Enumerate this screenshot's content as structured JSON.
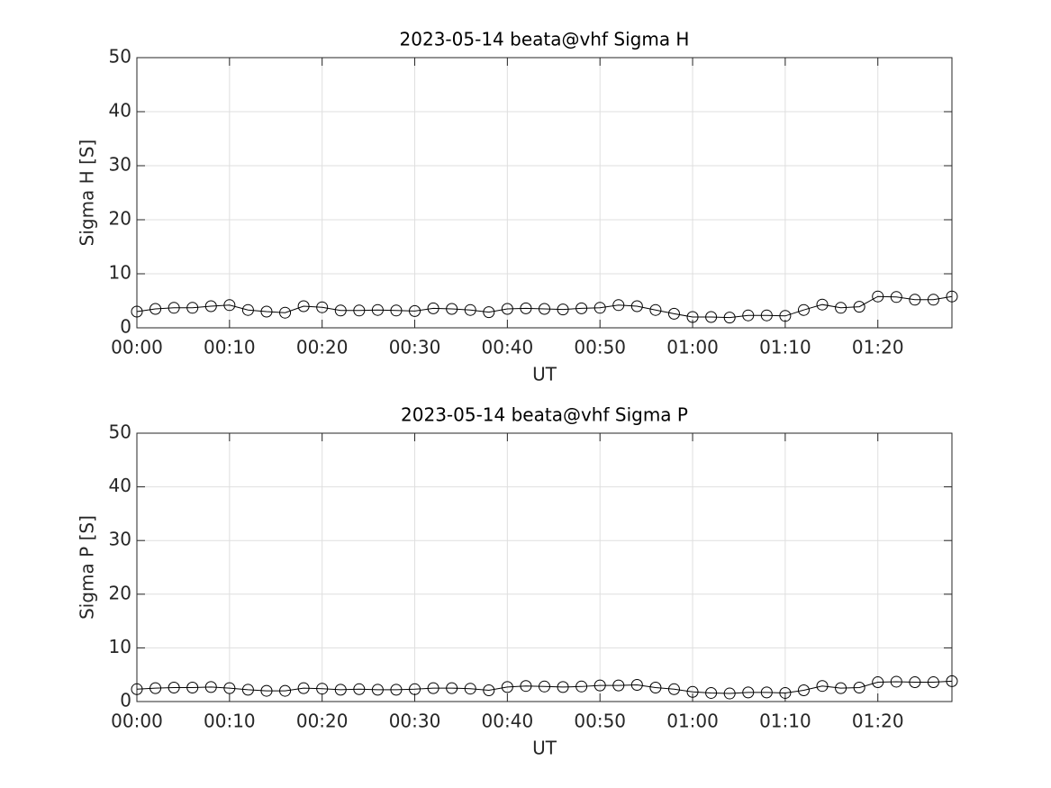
{
  "chart_data": [
    {
      "type": "line",
      "title": "2023-05-14  beata@vhf Sigma H",
      "xlabel": "UT",
      "ylabel": "Sigma H [S]",
      "x": [
        "00:00",
        "00:02",
        "00:04",
        "00:06",
        "00:08",
        "00:10",
        "00:12",
        "00:14",
        "00:16",
        "00:18",
        "00:20",
        "00:22",
        "00:24",
        "00:26",
        "00:28",
        "00:30",
        "00:32",
        "00:34",
        "00:36",
        "00:38",
        "00:40",
        "00:42",
        "00:44",
        "00:46",
        "00:48",
        "00:50",
        "00:52",
        "00:54",
        "00:56",
        "00:58",
        "01:00",
        "01:02",
        "01:04",
        "01:06",
        "01:08",
        "01:10",
        "01:12",
        "01:14",
        "01:16",
        "01:18",
        "01:20",
        "01:22",
        "01:24",
        "01:26",
        "01:28"
      ],
      "series": [
        {
          "color": "#000000",
          "values": [
            3.0,
            3.5,
            3.7,
            3.7,
            4.0,
            4.2,
            3.3,
            3.0,
            2.8,
            4.0,
            3.8,
            3.2,
            3.2,
            3.3,
            3.2,
            3.1,
            3.6,
            3.5,
            3.3,
            2.9,
            3.5,
            3.6,
            3.5,
            3.4,
            3.6,
            3.7,
            4.2,
            4.0,
            3.3,
            2.6,
            2.0,
            2.0,
            1.9,
            2.3,
            2.3,
            2.2,
            3.3,
            4.3,
            3.7,
            3.9,
            5.8,
            5.7,
            5.2,
            5.2,
            5.8
          ]
        }
      ],
      "xlim": [
        "00:00",
        "01:28"
      ],
      "xticks": [
        "00:00",
        "00:10",
        "00:20",
        "00:30",
        "00:40",
        "00:50",
        "01:00",
        "01:10",
        "01:20"
      ],
      "ylim": [
        0,
        50
      ],
      "yticks": [
        0,
        10,
        20,
        30,
        40,
        50
      ],
      "grid": true
    },
    {
      "type": "line",
      "title": "2023-05-14  beata@vhf Sigma P",
      "xlabel": "UT",
      "ylabel": "Sigma P [S]",
      "x": [
        "00:00",
        "00:02",
        "00:04",
        "00:06",
        "00:08",
        "00:10",
        "00:12",
        "00:14",
        "00:16",
        "00:18",
        "00:20",
        "00:22",
        "00:24",
        "00:26",
        "00:28",
        "00:30",
        "00:32",
        "00:34",
        "00:36",
        "00:38",
        "00:40",
        "00:42",
        "00:44",
        "00:46",
        "00:48",
        "00:50",
        "00:52",
        "00:54",
        "00:56",
        "00:58",
        "01:00",
        "01:02",
        "01:04",
        "01:06",
        "01:08",
        "01:10",
        "01:12",
        "01:14",
        "01:16",
        "01:18",
        "01:20",
        "01:22",
        "01:24",
        "01:26",
        "01:28"
      ],
      "series": [
        {
          "color": "#000000",
          "values": [
            2.3,
            2.5,
            2.6,
            2.6,
            2.7,
            2.5,
            2.2,
            2.0,
            2.0,
            2.5,
            2.4,
            2.2,
            2.3,
            2.2,
            2.2,
            2.3,
            2.5,
            2.5,
            2.4,
            2.1,
            2.7,
            2.9,
            2.8,
            2.7,
            2.8,
            3.0,
            3.0,
            3.1,
            2.6,
            2.3,
            1.8,
            1.6,
            1.5,
            1.7,
            1.7,
            1.6,
            2.1,
            2.9,
            2.5,
            2.6,
            3.6,
            3.7,
            3.6,
            3.6,
            3.8
          ]
        }
      ],
      "xlim": [
        "00:00",
        "01:28"
      ],
      "xticks": [
        "00:00",
        "00:10",
        "00:20",
        "00:30",
        "00:40",
        "00:50",
        "01:00",
        "01:10",
        "01:20"
      ],
      "ylim": [
        0,
        50
      ],
      "yticks": [
        0,
        10,
        20,
        30,
        40,
        50
      ],
      "grid": true
    }
  ]
}
